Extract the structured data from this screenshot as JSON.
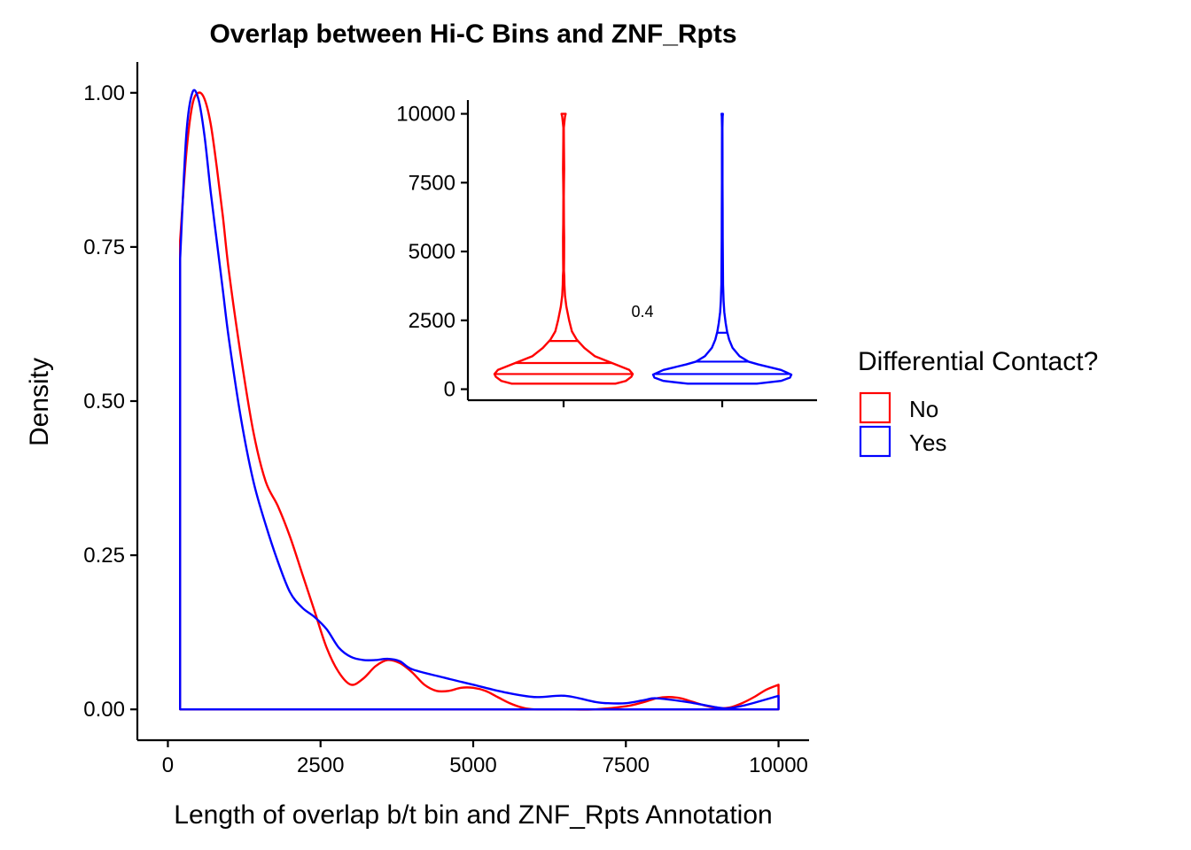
{
  "chart_data": [
    {
      "type": "density",
      "title": "Overlap between Hi-C Bins and ZNF_Rpts",
      "xlabel": "Length of overlap b/t bin and ZNF_Rpts Annotation",
      "ylabel": "Density",
      "xlim": [
        -500,
        10500
      ],
      "ylim": [
        -0.05,
        1.05
      ],
      "xticks": [
        0,
        2500,
        5000,
        7500,
        10000
      ],
      "xtick_labels": [
        "0",
        "2500",
        "5000",
        "7500",
        "10000"
      ],
      "yticks": [
        0,
        0.25,
        0.5,
        0.75,
        1.0
      ],
      "ytick_labels": [
        "0.00",
        "0.25",
        "0.50",
        "0.75",
        "1.00"
      ],
      "grid": false,
      "series": [
        {
          "name": "No",
          "color": "#ff0000",
          "x": [
            200,
            300,
            400,
            500,
            600,
            700,
            800,
            900,
            1000,
            1200,
            1400,
            1600,
            1800,
            2000,
            2200,
            2400,
            2600,
            2800,
            3000,
            3200,
            3400,
            3600,
            3800,
            4000,
            4200,
            4400,
            4600,
            4800,
            5000,
            5200,
            5400,
            5600,
            5800,
            6000,
            6500,
            7000,
            7500,
            7800,
            8000,
            8200,
            8400,
            8600,
            8800,
            9000,
            9200,
            9400,
            9600,
            9800,
            10000
          ],
          "y": [
            0.76,
            0.9,
            0.98,
            1.0,
            0.99,
            0.95,
            0.88,
            0.8,
            0.71,
            0.57,
            0.45,
            0.37,
            0.33,
            0.28,
            0.22,
            0.16,
            0.1,
            0.06,
            0.04,
            0.05,
            0.07,
            0.08,
            0.075,
            0.06,
            0.04,
            0.03,
            0.03,
            0.035,
            0.035,
            0.03,
            0.02,
            0.01,
            0.003,
            0.0,
            0.0,
            0.0,
            0.005,
            0.012,
            0.018,
            0.02,
            0.018,
            0.012,
            0.006,
            0.002,
            0.003,
            0.01,
            0.02,
            0.032,
            0.04
          ]
        },
        {
          "name": "Yes",
          "color": "#0000ff",
          "x": [
            200,
            300,
            400,
            500,
            600,
            700,
            800,
            900,
            1000,
            1200,
            1400,
            1600,
            1800,
            2000,
            2200,
            2400,
            2600,
            2800,
            3000,
            3200,
            3400,
            3600,
            3800,
            4000,
            4500,
            5000,
            5500,
            6000,
            6500,
            7000,
            7200,
            7500,
            7800,
            8000,
            8500,
            9000,
            9200,
            9500,
            10000
          ],
          "y": [
            0.73,
            0.93,
            1.0,
            0.99,
            0.93,
            0.84,
            0.76,
            0.68,
            0.6,
            0.47,
            0.37,
            0.3,
            0.24,
            0.19,
            0.165,
            0.15,
            0.13,
            0.1,
            0.085,
            0.08,
            0.08,
            0.082,
            0.078,
            0.065,
            0.052,
            0.04,
            0.028,
            0.02,
            0.022,
            0.012,
            0.01,
            0.01,
            0.015,
            0.018,
            0.012,
            0.003,
            0.002,
            0.008,
            0.022
          ]
        }
      ]
    },
    {
      "type": "violin",
      "ylim": [
        -400,
        10500
      ],
      "yticks": [
        0,
        2500,
        5000,
        7500,
        10000
      ],
      "ytick_labels": [
        "0",
        "2500",
        "5000",
        "7500",
        "10000"
      ],
      "annotation": "0.4",
      "series": [
        {
          "name": "No",
          "color": "#ff0000",
          "quantiles": [
            550,
            950,
            1750
          ],
          "profile_y": [
            200,
            300,
            450,
            550,
            700,
            950,
            1200,
            1500,
            1800,
            2100,
            2500,
            3000,
            3400,
            3800,
            4100,
            4300,
            4800,
            5500,
            6000,
            7000,
            7500,
            8000,
            8500,
            9000,
            9500,
            9900,
            10000
          ],
          "profile_halfwidth": [
            0.75,
            0.9,
            0.98,
            1.0,
            0.95,
            0.7,
            0.45,
            0.3,
            0.19,
            0.12,
            0.08,
            0.04,
            0.02,
            0.012,
            0.01,
            0.005,
            0.007,
            0.008,
            0.005,
            0.003,
            0.005,
            0.008,
            0.006,
            0.004,
            0.003,
            0.02,
            0.03
          ]
        },
        {
          "name": "Yes",
          "color": "#0000ff",
          "quantiles": [
            550,
            1000,
            2050
          ],
          "profile_y": [
            200,
            300,
            420,
            530,
            700,
            900,
            1000,
            1200,
            1500,
            1800,
            2100,
            2400,
            2800,
            3200,
            3800,
            4500,
            5500,
            6500,
            7500,
            8500,
            9500,
            9900,
            10000
          ],
          "profile_halfwidth": [
            0.5,
            0.85,
            0.98,
            1.0,
            0.85,
            0.52,
            0.38,
            0.25,
            0.15,
            0.1,
            0.07,
            0.05,
            0.03,
            0.02,
            0.012,
            0.01,
            0.007,
            0.006,
            0.004,
            0.004,
            0.003,
            0.006,
            0.01
          ]
        }
      ]
    }
  ],
  "legend": {
    "title": "Differential Contact?",
    "items": [
      {
        "label": "No",
        "color": "#ff0000"
      },
      {
        "label": "Yes",
        "color": "#0000ff"
      }
    ]
  }
}
